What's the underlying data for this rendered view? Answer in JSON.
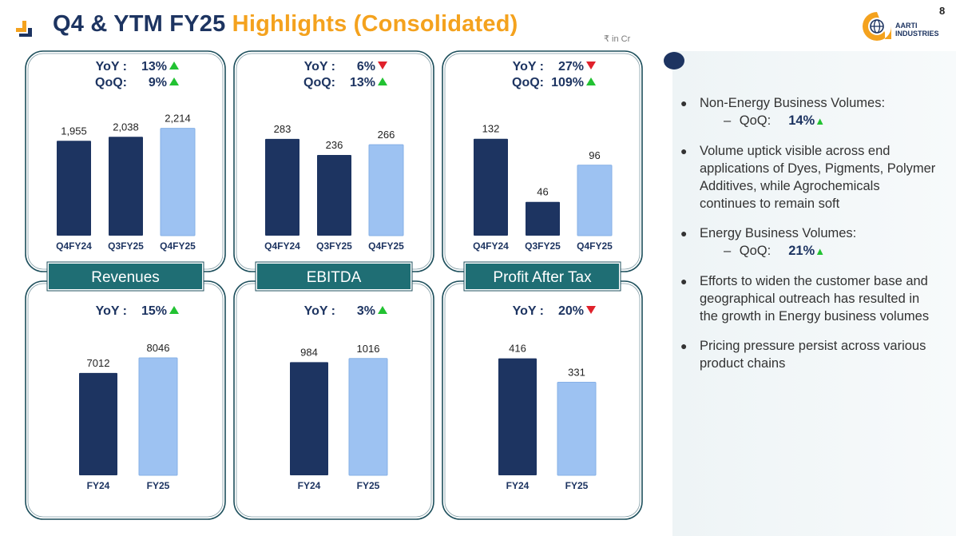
{
  "header": {
    "title_part1": "Q4 & YTM FY25",
    "title_part2": "Highlights (Consolidated)",
    "unit": "₹ in Cr",
    "page_number": "8"
  },
  "logo": {
    "line1": "AARTI",
    "line2": "INDUSTRIES"
  },
  "colors": {
    "dark_bar": "#1d3461",
    "light_bar": "#9dc2f2",
    "frame": "#1d4f5c",
    "label_box": "#1f6e74",
    "accent": "#f4a21e"
  },
  "chart_data": [
    {
      "id": "revenues-quarterly",
      "type": "bar",
      "categories": [
        "Q4FY24",
        "Q3FY25",
        "Q4FY25"
      ],
      "values": [
        1955,
        2038,
        2214
      ],
      "value_labels": [
        "1,955",
        "2,038",
        "2,214"
      ],
      "ylim": [
        0,
        2800
      ],
      "metrics": [
        {
          "label": "YoY :",
          "value": "13%",
          "direction": "up"
        },
        {
          "label": "QoQ:",
          "value": "9%",
          "direction": "up"
        }
      ]
    },
    {
      "id": "ebitda-quarterly",
      "type": "bar",
      "categories": [
        "Q4FY24",
        "Q3FY25",
        "Q4FY25"
      ],
      "values": [
        283,
        236,
        266
      ],
      "value_labels": [
        "283",
        "236",
        "266"
      ],
      "ylim": [
        0,
        397
      ],
      "metrics": [
        {
          "label": "YoY :",
          "value": "6%",
          "direction": "down"
        },
        {
          "label": "QoQ:",
          "value": "13%",
          "direction": "up"
        }
      ]
    },
    {
      "id": "pat-quarterly",
      "type": "bar",
      "categories": [
        "Q4FY24",
        "Q3FY25",
        "Q4FY25"
      ],
      "values": [
        132,
        46,
        96
      ],
      "value_labels": [
        "132",
        "46",
        "96"
      ],
      "ylim": [
        0,
        185
      ],
      "metrics": [
        {
          "label": "YoY :",
          "value": "27%",
          "direction": "down"
        },
        {
          "label": "QoQ:",
          "value": "109%",
          "direction": "up"
        }
      ]
    },
    {
      "id": "revenues-annual",
      "type": "bar",
      "categories": [
        "FY24",
        "FY25"
      ],
      "values": [
        7012,
        8046
      ],
      "value_labels": [
        "7012",
        "8046"
      ],
      "ylim": [
        0,
        10400
      ],
      "metrics": [
        {
          "label": "YoY :",
          "value": "15%",
          "direction": "up"
        }
      ]
    },
    {
      "id": "ebitda-annual",
      "type": "bar",
      "categories": [
        "FY24",
        "FY25"
      ],
      "values": [
        984,
        1016
      ],
      "value_labels": [
        "984",
        "1016"
      ],
      "ylim": [
        0,
        1320
      ],
      "metrics": [
        {
          "label": "YoY :",
          "value": "3%",
          "direction": "up"
        }
      ]
    },
    {
      "id": "pat-annual",
      "type": "bar",
      "categories": [
        "FY24",
        "FY25"
      ],
      "values": [
        416,
        331
      ],
      "value_labels": [
        "416",
        "331"
      ],
      "ylim": [
        0,
        540
      ],
      "metrics": [
        {
          "label": "YoY :",
          "value": "20%",
          "direction": "down"
        }
      ]
    }
  ],
  "section_labels": [
    "Revenues",
    "EBITDA",
    "Profit After Tax"
  ],
  "bullets": [
    {
      "text": "Non-Energy Business Volumes:",
      "sub": {
        "dash": "–",
        "label": "QoQ:",
        "value": "14%",
        "direction": "up"
      }
    },
    {
      "text": "Volume uptick visible across end applications of Dyes, Pigments, Polymer Additives, while Agrochemicals continues to remain soft"
    },
    {
      "text": "Energy Business Volumes:",
      "sub": {
        "dash": "–",
        "label": "QoQ:",
        "value": "21%",
        "direction": "up"
      }
    },
    {
      "text": "Efforts to widen the customer base and geographical outreach has resulted in the growth in Energy business volumes"
    },
    {
      "text": "Pricing pressure persist across various product chains"
    }
  ]
}
